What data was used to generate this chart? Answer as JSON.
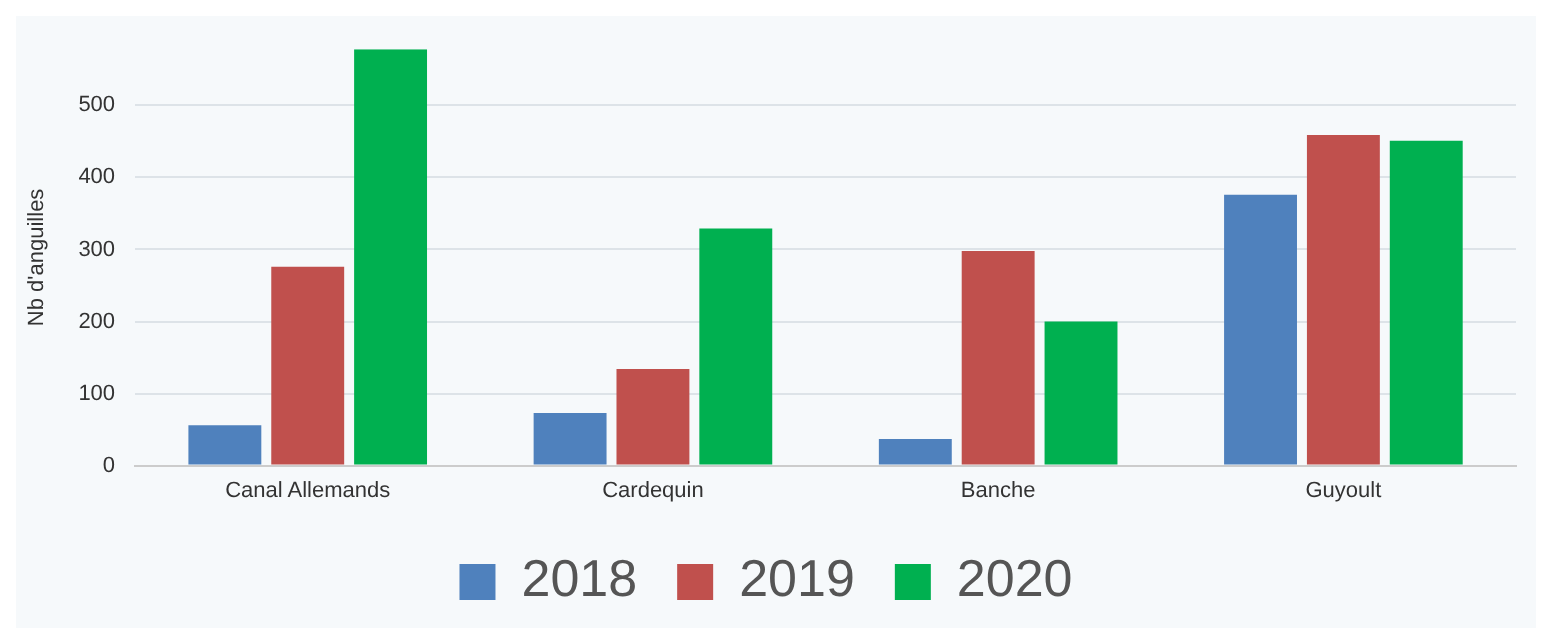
{
  "chart_data": {
    "type": "bar",
    "ylabel": "Nb d'anguilles",
    "categories": [
      "Canal Allemands",
      "Cardequin",
      "Banche",
      "Guyoult"
    ],
    "series": [
      {
        "name": "2018",
        "color": "#4f81bd",
        "values": [
          56,
          73,
          37,
          376
        ]
      },
      {
        "name": "2019",
        "color": "#c0504d",
        "values": [
          276,
          134,
          298,
          459
        ]
      },
      {
        "name": "2020",
        "color": "#00b050",
        "values": [
          578,
          329,
          200,
          451
        ]
      }
    ],
    "ylim": [
      0,
      578
    ],
    "yticks": [
      0,
      100,
      200,
      300,
      400,
      500
    ],
    "grid": "y",
    "legend": "bottom"
  }
}
